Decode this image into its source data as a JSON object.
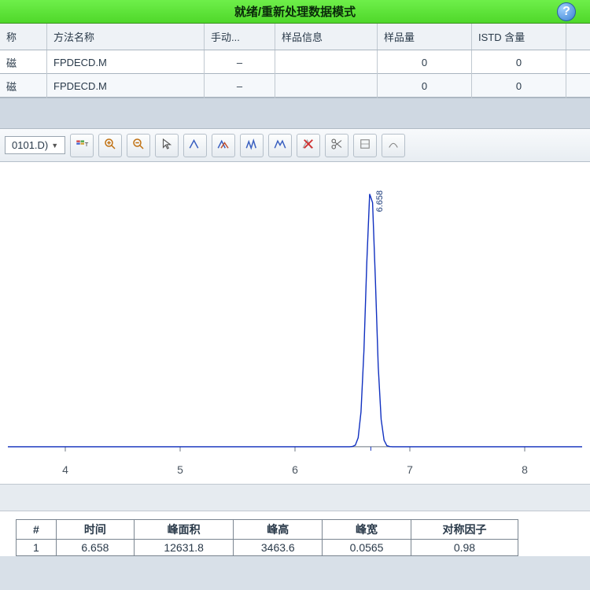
{
  "titlebar": {
    "text": "就绪/重新处理数据模式",
    "help_glyph": "?"
  },
  "grid": {
    "headers": {
      "col0": "称",
      "col_method": "方法名称",
      "col_manual": "手动...",
      "col_sample": "样品信息",
      "col_amount": "样品量",
      "col_istd": "ISTD 含量"
    },
    "rows": [
      {
        "c0": "磁",
        "method": "FPDECD.M",
        "manual": "–",
        "sample": "",
        "amount": "0",
        "istd": "0"
      },
      {
        "c0": "磁",
        "method": "FPDECD.M",
        "manual": "–",
        "sample": "",
        "amount": "0",
        "istd": "0"
      }
    ]
  },
  "toolbar": {
    "file_label": "0101.D)",
    "icons": {
      "palette": "palette",
      "zoom_in": "zoom-in",
      "zoom_out": "zoom-out",
      "pointer": "pointer",
      "peak1": "peak-single",
      "peak2": "peak-overlay",
      "peak3": "peak-multi",
      "peak4": "peak-split",
      "del": "delete-peak",
      "scissors": "cut",
      "tool_a": "tool-a",
      "tool_b": "tool-b"
    }
  },
  "chart": {
    "type": "line",
    "background_color": "#ffffff",
    "axis_color": "#6a7580",
    "line_color": "#1030c0",
    "line_width": 1.4,
    "xlim": [
      3.5,
      8.5
    ],
    "x_ticks": [
      4,
      5,
      6,
      7,
      8
    ],
    "baseline_y": 0.02,
    "peak": {
      "rt": 6.66,
      "height_rel": 0.92,
      "width": 0.06,
      "label": "6.658"
    }
  },
  "results": {
    "headers": {
      "num": "#",
      "time": "时间",
      "area": "峰面积",
      "height": "峰高",
      "width": "峰宽",
      "symmetry": "对称因子"
    },
    "row": {
      "num": "1",
      "time": "6.658",
      "area": "12631.8",
      "height": "3463.6",
      "width": "0.0565",
      "symmetry": "0.98"
    }
  },
  "colors": {
    "title_bg": "#4fd82a",
    "grid_border": "#aab5c0"
  }
}
